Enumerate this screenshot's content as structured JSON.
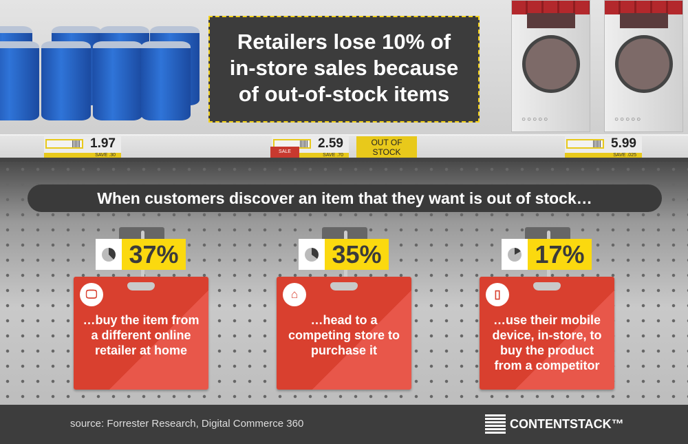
{
  "headline": "Retailers lose 10% of in-store sales because of out-of-stock items",
  "headline_lines": [
    "Retailers lose 10% of",
    "in-store sales because",
    "of out-of-stock items"
  ],
  "price_tags": [
    {
      "price": "1.97",
      "save": "SAVE  .30"
    },
    {
      "price": "2.59",
      "save": "SAVE  .70",
      "badge": "SALE"
    },
    {
      "price": "5.99",
      "save": "SAVE .025"
    }
  ],
  "out_of_stock": "OUT OF STOCK",
  "subheading": "When customers discover an item that they want is out of stock…",
  "stats": [
    {
      "percent": 37,
      "label": "37%",
      "icon": "monitor-icon",
      "text": "…buy the item from a different online retailer at home"
    },
    {
      "percent": 35,
      "label": "35%",
      "icon": "store-icon",
      "text": "…head to a competing store to purchase it"
    },
    {
      "percent": 17,
      "label": "17%",
      "icon": "mobile-icon",
      "text": "…use their mobile device, in-store, to buy the product from a competitor"
    }
  ],
  "colors": {
    "card": "#d9402f",
    "percent_bg": "#fbd90f",
    "banner_border": "#f4d21a"
  },
  "footer": {
    "source": "source: Forrester Research, Digital Commerce 360",
    "logo": "CONTENTSTACK™"
  }
}
